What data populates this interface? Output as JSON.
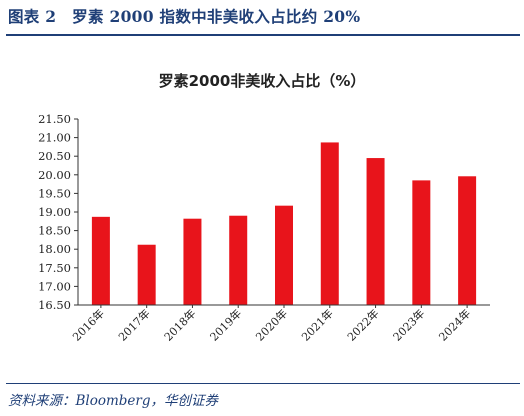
{
  "figure": {
    "title": "图表 2　罗素 2000 指数中非美收入占比约 20%",
    "source": "资料来源：Bloomberg，华创证券"
  },
  "chart_data": {
    "type": "bar",
    "title": "罗素2000非美收入占比（%）",
    "xlabel": "",
    "ylabel": "",
    "categories": [
      "2016年",
      "2017年",
      "2018年",
      "2019年",
      "2020年",
      "2021年",
      "2022年",
      "2023年",
      "2024年"
    ],
    "values": [
      18.87,
      18.12,
      18.82,
      18.9,
      19.17,
      20.87,
      20.45,
      19.85,
      19.96
    ],
    "ylim": [
      16.5,
      21.5
    ],
    "yticks": [
      "16.50",
      "17.00",
      "17.50",
      "18.00",
      "18.50",
      "19.00",
      "19.50",
      "20.00",
      "20.50",
      "21.00",
      "21.50"
    ],
    "bar_color": "#e8141b",
    "grid": false,
    "legend": "none"
  }
}
